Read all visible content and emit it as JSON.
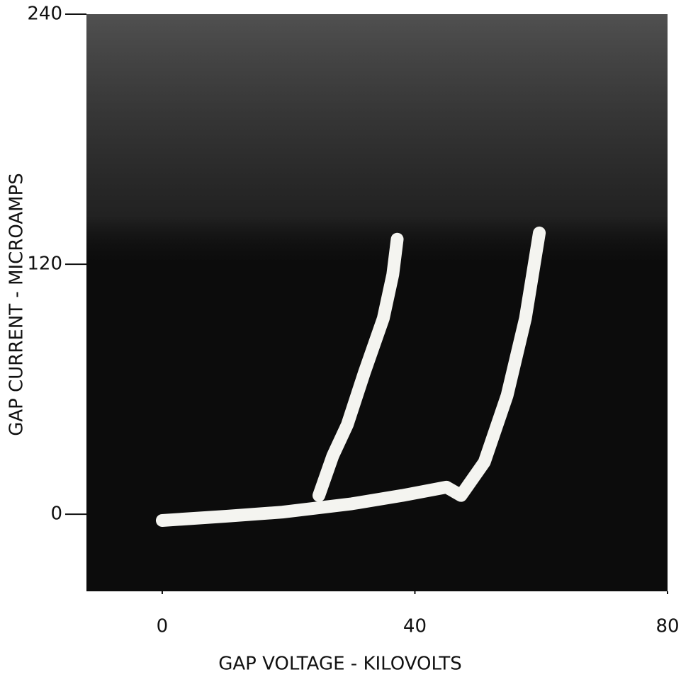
{
  "chart_data": {
    "type": "line",
    "x_label": "GAP VOLTAGE - KILOVOLTS",
    "y_label": "GAP CURRENT - MICROAMPS",
    "series": [
      {
        "color": "#f4f4f0",
        "x": [
          0,
          10,
          19,
          30,
          38,
          45,
          47.3,
          51,
          54.6,
          57.5,
          59.7
        ],
        "values": [
          -3,
          -1,
          1,
          5,
          9,
          13,
          9,
          25,
          57,
          94,
          135
        ]
      },
      {
        "color": "#f4f4f0",
        "x": [
          24.8,
          27,
          29.3,
          32,
          35,
          36.5,
          37.2
        ],
        "values": [
          9,
          28,
          43,
          68,
          94,
          115,
          132
        ]
      }
    ],
    "xlim": [
      -12,
      80
    ],
    "xticks": [
      0,
      40,
      80
    ],
    "ylim": [
      -37,
      240
    ],
    "yticks": [
      0,
      120,
      240
    ],
    "plot_background": "#0c0c0c"
  }
}
